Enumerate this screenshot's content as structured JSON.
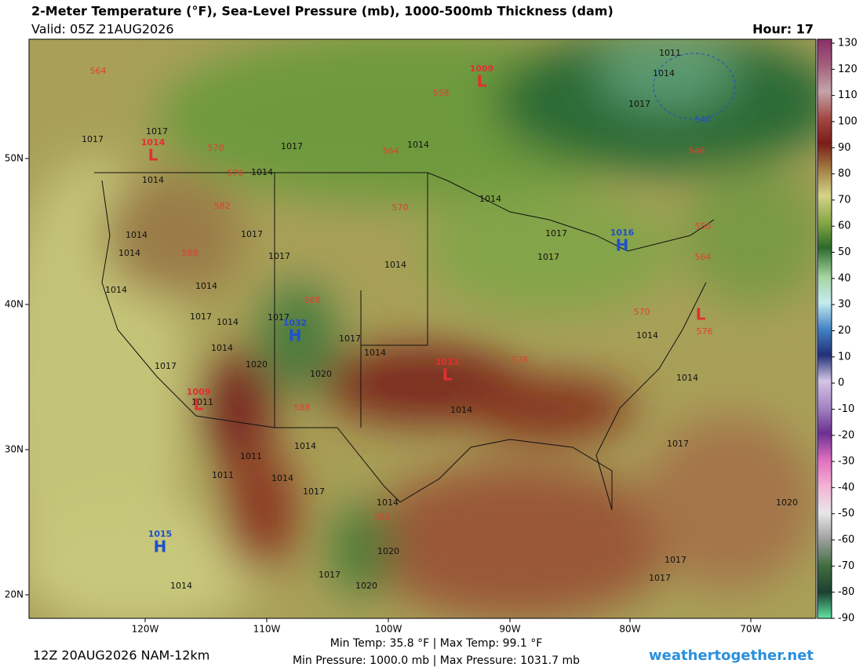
{
  "header": {
    "title": "2-Meter Temperature (°F), Sea-Level Pressure (mb), 1000-500mb Thickness (dam)",
    "valid": "Valid: 05Z 21AUG2026",
    "hour": "Hour: 17"
  },
  "map": {
    "lat_labels": [
      "50N",
      "40N",
      "30N",
      "20N"
    ],
    "lon_labels": [
      "120W",
      "110W",
      "100W",
      "90W",
      "80W",
      "70W"
    ],
    "pressure_labels": [
      "1017",
      "1017",
      "1014",
      "1014",
      "1014",
      "1014",
      "1017",
      "1017",
      "1014",
      "1014",
      "1017",
      "1017",
      "1014",
      "1014",
      "1014",
      "1017",
      "1014",
      "1017",
      "1017",
      "1014",
      "1014",
      "1020",
      "1020",
      "1017",
      "1014",
      "1014",
      "1011",
      "1014",
      "1014",
      "1011",
      "1011",
      "1014",
      "1017",
      "1014",
      "1020",
      "1017",
      "1020",
      "1017",
      "1020",
      "1017",
      "1017",
      "1014",
      "1017",
      "1011",
      "1014",
      "1017"
    ],
    "thickness_labels": [
      "564",
      "558",
      "570",
      "564",
      "576",
      "582",
      "570",
      "588",
      "588",
      "588",
      "576",
      "582",
      "570",
      "576",
      "558",
      "564",
      "546",
      "540"
    ],
    "centers": [
      {
        "kind": "L",
        "value": "1009"
      },
      {
        "kind": "L",
        "value": "1014"
      },
      {
        "kind": "H",
        "value": "1032"
      },
      {
        "kind": "H",
        "value": "1016"
      },
      {
        "kind": "L",
        "value": "1013"
      },
      {
        "kind": "L",
        "value": "1009"
      },
      {
        "kind": "H",
        "value": "1015"
      },
      {
        "kind": "L"
      }
    ]
  },
  "colorbar": {
    "ticks": [
      130,
      120,
      110,
      100,
      90,
      80,
      70,
      60,
      50,
      40,
      30,
      20,
      10,
      0,
      -10,
      -20,
      -30,
      -40,
      -50,
      -60,
      -70,
      -80,
      -90
    ]
  },
  "footer": {
    "run": "12Z 20AUG2026 NAM-12km",
    "stats_line1": "Min Temp:  35.8 °F | Max Temp:  99.1 °F",
    "stats_line2": "Min Pressure: 1000.0 mb | Max Pressure: 1031.7 mb",
    "site": "weathertogether.net"
  }
}
